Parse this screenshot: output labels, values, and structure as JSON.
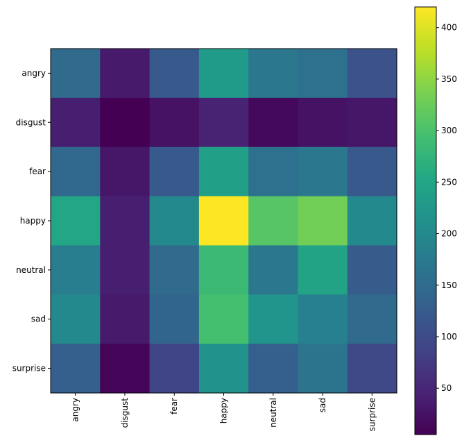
{
  "chart_data": {
    "type": "heatmap",
    "title": "",
    "xlabel": "",
    "ylabel": "",
    "x_categories": [
      "angry",
      "disgust",
      "fear",
      "happy",
      "neutral",
      "sad",
      "surprise"
    ],
    "y_categories": [
      "angry",
      "disgust",
      "fear",
      "happy",
      "neutral",
      "sad",
      "surprise"
    ],
    "values": [
      [
        150,
        35,
        120,
        230,
        170,
        160,
        110
      ],
      [
        40,
        5,
        25,
        45,
        15,
        25,
        30
      ],
      [
        145,
        30,
        120,
        240,
        160,
        170,
        120
      ],
      [
        250,
        40,
        200,
        420,
        310,
        330,
        200
      ],
      [
        180,
        40,
        150,
        285,
        170,
        245,
        125
      ],
      [
        200,
        35,
        140,
        295,
        220,
        185,
        150
      ],
      [
        130,
        10,
        90,
        215,
        130,
        165,
        95
      ]
    ],
    "colormap": "viridis",
    "vmin": 5,
    "vmax": 420,
    "colorbar": {
      "ticks": [
        50,
        100,
        150,
        200,
        250,
        300,
        350,
        400
      ],
      "tick_labels": [
        "50",
        "100",
        "150",
        "200",
        "250",
        "300",
        "350",
        "400"
      ]
    },
    "x_tick_rotation": "vertical",
    "grid": false
  }
}
